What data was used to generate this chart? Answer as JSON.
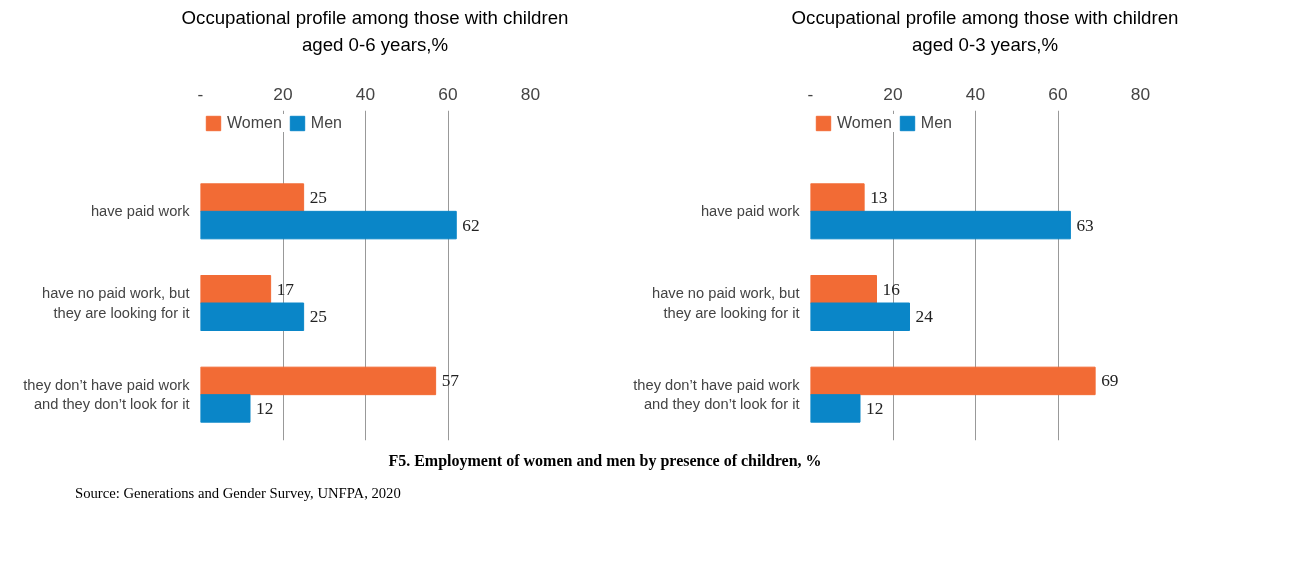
{
  "chart_data": [
    {
      "type": "bar",
      "orientation": "horizontal",
      "title": "Occupational profile among those with children aged 0-6 years,%",
      "categories": [
        "have paid work",
        "have no paid work, but they are looking for it",
        "they don’t have paid work and they don’t look for it"
      ],
      "series": [
        {
          "name": "Women",
          "color": "#f26b35",
          "values": [
            25,
            17,
            57
          ]
        },
        {
          "name": "Men",
          "color": "#0a86c8",
          "values": [
            62,
            25,
            12
          ]
        }
      ],
      "xlim": [
        0,
        80
      ],
      "xticks": [
        {
          "value": 0,
          "label": "-"
        },
        20,
        40,
        60,
        80
      ],
      "grid": "x",
      "legend": "top left",
      "data_labels": true,
      "annotations": [
        "F5. Employment of women and men by presence of children, %",
        "Source: Generations and Gender Survey, UNFPA, 2020"
      ]
    },
    {
      "type": "bar",
      "orientation": "horizontal",
      "title": "Occupational profile among those with children aged 0-3 years,%",
      "categories": [
        "have paid work",
        "have no paid work, but they are looking for it",
        "they don’t have paid work and they don’t look for it"
      ],
      "series": [
        {
          "name": "Women",
          "color": "#f26b35",
          "values": [
            13,
            16,
            69
          ]
        },
        {
          "name": "Men",
          "color": "#0a86c8",
          "values": [
            63,
            24,
            12
          ]
        }
      ],
      "xlim": [
        0,
        80
      ],
      "xticks": [
        {
          "value": 0,
          "label": "-"
        },
        20,
        40,
        60,
        80
      ],
      "grid": "x",
      "legend": "top left",
      "data_labels": true
    }
  ]
}
